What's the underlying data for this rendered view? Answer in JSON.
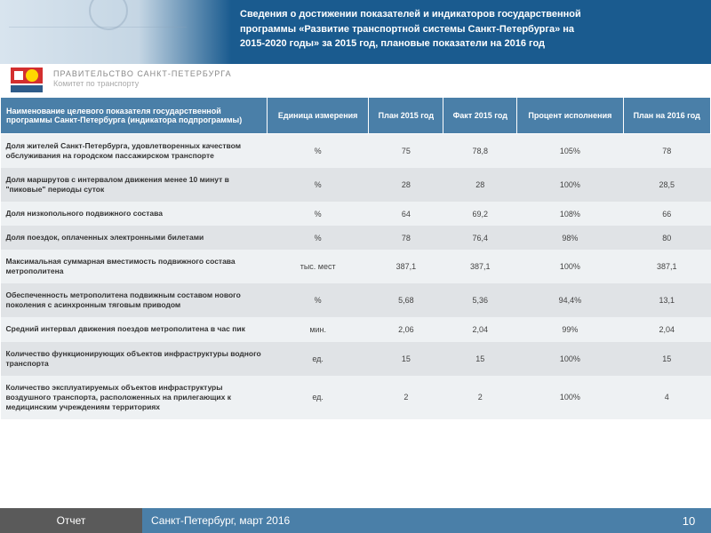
{
  "header": {
    "title_line1": "Сведения о достижении показателей и индикаторов государственной",
    "title_line2": "программы «Развитие транспортной системы Санкт-Петербурга» на",
    "title_line3": "2015-2020 годы» за 2015 год, плановые показатели на 2016 год",
    "gov": "ПРАВИТЕЛЬСТВО САНКТ-ПЕТЕРБУРГА",
    "com": "Комитет по транспорту"
  },
  "table": {
    "columns": [
      "Наименование целевого показателя государственной программы Санкт-Петербурга (индикатора подпрограммы)",
      "Единица измерения",
      "План 2015 год",
      "Факт 2015 год",
      "Процент исполнения",
      "План на 2016 год"
    ],
    "rows": [
      [
        "Доля жителей Санкт-Петербурга, удовлетворенных качеством обслуживания на городском пассажирском транспорте",
        "%",
        "75",
        "78,8",
        "105%",
        "78"
      ],
      [
        "Доля маршрутов с интервалом движения менее 10 минут в \"пиковые\" периоды суток",
        "%",
        "28",
        "28",
        "100%",
        "28,5"
      ],
      [
        "Доля низкопольного подвижного состава",
        "%",
        "64",
        "69,2",
        "108%",
        "66"
      ],
      [
        "Доля поездок, оплаченных электронными билетами",
        "%",
        "78",
        "76,4",
        "98%",
        "80"
      ],
      [
        "Максимальная суммарная вместимость подвижного состава метрополитена",
        "тыс. мест",
        "387,1",
        "387,1",
        "100%",
        "387,1"
      ],
      [
        "Обеспеченность метрополитена подвижным составом нового поколения с асинхронным тяговым приводом",
        "%",
        "5,68",
        "5,36",
        "94,4%",
        "13,1"
      ],
      [
        "Средний интервал движения поездов метрополитена в час пик",
        "мин.",
        "2,06",
        "2,04",
        "99%",
        "2,04"
      ],
      [
        "Количество функционирующих объектов инфраструктуры водного транспорта",
        "ед.",
        "15",
        "15",
        "100%",
        "15"
      ],
      [
        "Количество эксплуатируемых объектов инфраструктуры воздушного транспорта, расположенных на прилегающих к медицинским учреждениям территориях",
        "ед.",
        "2",
        "2",
        "100%",
        "4"
      ]
    ]
  },
  "footer": {
    "left": "Отчет",
    "center": "Санкт-Петербург, март 2016",
    "page": "10"
  },
  "colors": {
    "header_bg": "#1a5b8f",
    "table_header_bg": "#4a7fa8",
    "row_even": "#e0e3e6",
    "row_odd": "#eef1f3",
    "footer_dark": "#5a5a5a"
  }
}
